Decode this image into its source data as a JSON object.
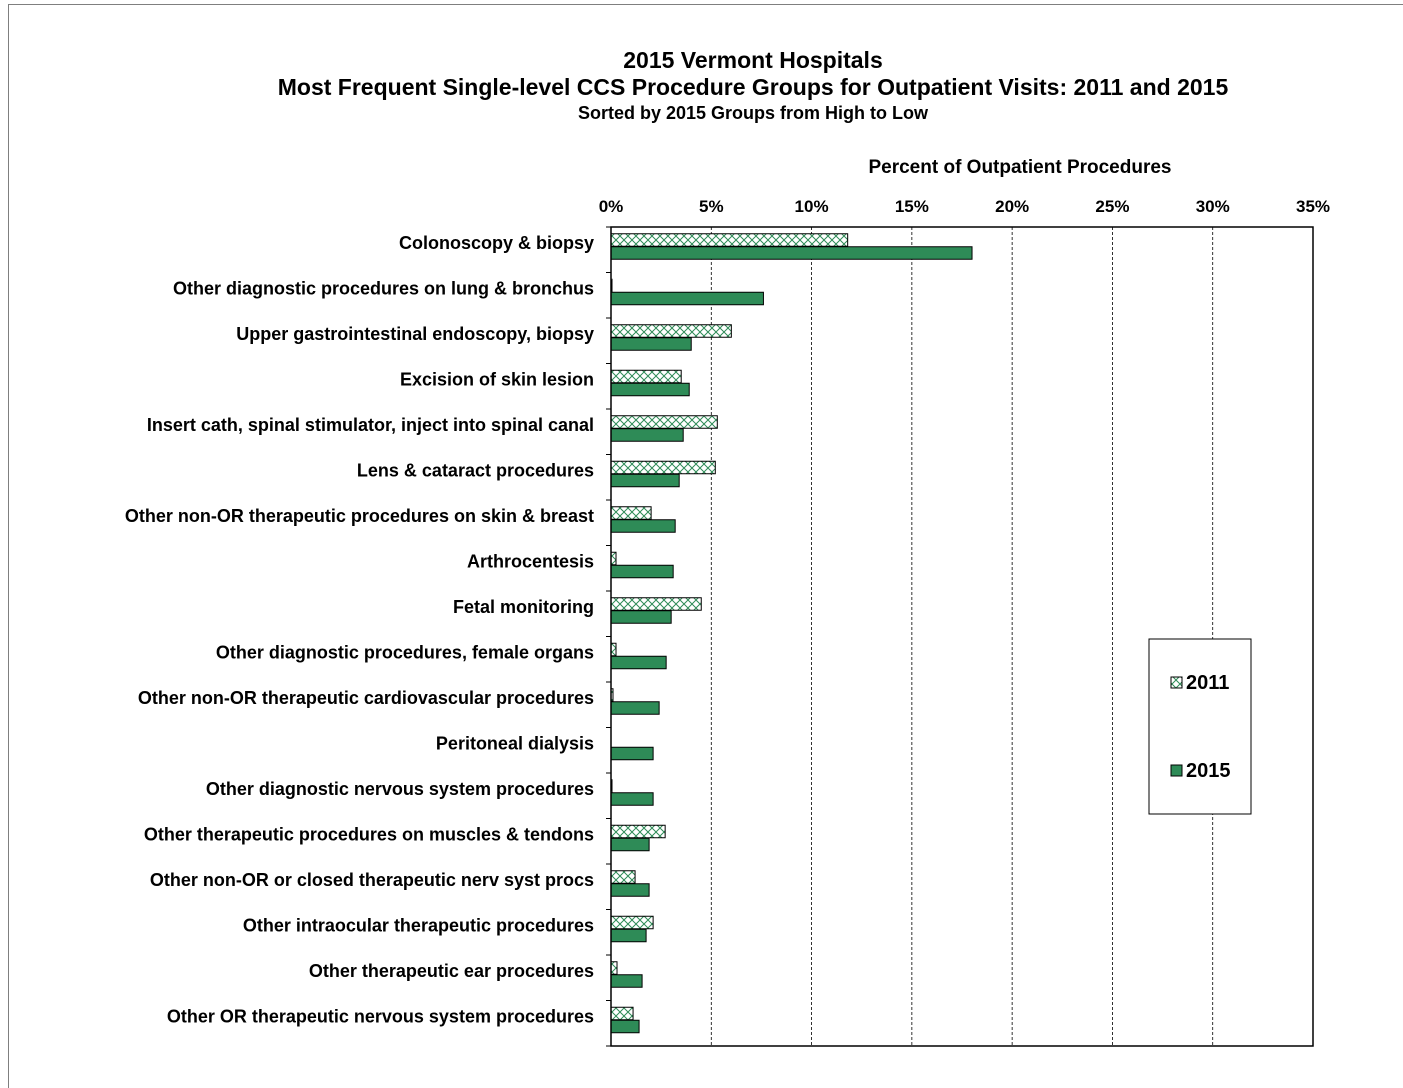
{
  "chart_data": {
    "type": "bar",
    "orientation": "horizontal",
    "title": "2015 Vermont Hospitals",
    "subtitle": "Most Frequent Single-level CCS Procedure Groups for Outpatient Visits:  2011 and 2015",
    "subtitle2": "Sorted by 2015 Groups from High to Low",
    "xlabel": "Percent of Outpatient Procedures",
    "xlim": [
      0,
      35
    ],
    "xticks": [
      "0%",
      "5%",
      "10%",
      "15%",
      "20%",
      "25%",
      "30%",
      "35%"
    ],
    "grid": true,
    "legend_position": "right",
    "categories": [
      "Colonoscopy & biopsy",
      "Other diagnostic procedures on lung & bronchus",
      "Upper gastrointestinal endoscopy, biopsy",
      "Excision of skin lesion",
      "Insert cath, spinal stimulator, inject into spinal canal",
      "Lens & cataract procedures",
      "Other non-OR therapeutic procedures on skin & breast",
      "Arthrocentesis",
      "Fetal monitoring",
      "Other diagnostic procedures, female organs",
      "Other non-OR therapeutic cardiovascular procedures",
      "Peritoneal dialysis",
      "Other diagnostic nervous system procedures",
      "Other therapeutic procedures on muscles & tendons",
      "Other non-OR or closed therapeutic nerv syst procs",
      "Other intraocular therapeutic procedures",
      "Other therapeutic ear procedures",
      "Other OR therapeutic nervous system procedures"
    ],
    "series": [
      {
        "name": "2011",
        "color": "#ffffff",
        "pattern": "crosshatch",
        "pattern_color": "#2e8b57",
        "values": [
          11.8,
          0.05,
          6.0,
          3.5,
          5.3,
          5.2,
          2.0,
          0.25,
          4.5,
          0.25,
          0.1,
          0.0,
          0.05,
          2.7,
          1.2,
          2.1,
          0.3,
          1.1
        ]
      },
      {
        "name": "2015",
        "color": "#2e8b57",
        "values": [
          18.0,
          7.6,
          4.0,
          3.9,
          3.6,
          3.4,
          3.2,
          3.1,
          3.0,
          2.75,
          2.4,
          2.1,
          2.1,
          1.9,
          1.9,
          1.75,
          1.55,
          1.4
        ]
      }
    ]
  }
}
